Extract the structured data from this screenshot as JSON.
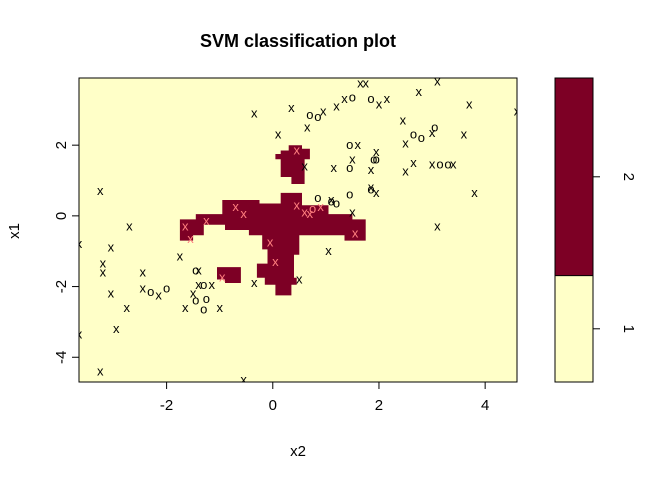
{
  "chart_data": {
    "type": "scatter",
    "title": "SVM classification plot",
    "xlabel": "x2",
    "ylabel": "x1",
    "xlim": [
      -3.65,
      4.6
    ],
    "ylim": [
      -4.7,
      3.9
    ],
    "x_ticks": [
      -2,
      0,
      2,
      4
    ],
    "y_ticks": [
      -4,
      -2,
      0,
      2
    ],
    "x_tick_labels": [
      "-2",
      "0",
      "2",
      "4"
    ],
    "y_tick_labels": [
      "-4",
      "-2",
      "0",
      "2"
    ],
    "grid": false,
    "colors": {
      "class_1": "#ffffc8",
      "class_2": "#7d0025",
      "point_on_class_1": "#000000",
      "point_on_class_2": "#ff7f7f"
    },
    "legend": {
      "placement": "right",
      "entries": [
        "1",
        "2"
      ],
      "split_fraction": 0.35
    },
    "decision_regions": [
      {
        "class": "2",
        "polygon": [
          [
            -1.75,
            -0.1
          ],
          [
            -1.45,
            -0.1
          ],
          [
            -1.45,
            0.05
          ],
          [
            -0.95,
            0.05
          ],
          [
            -0.95,
            0.45
          ],
          [
            -0.25,
            0.45
          ],
          [
            -0.25,
            0.35
          ],
          [
            0.15,
            0.35
          ],
          [
            0.15,
            0.65
          ],
          [
            0.55,
            0.65
          ],
          [
            0.55,
            0.3
          ],
          [
            1.05,
            0.3
          ],
          [
            1.05,
            0.05
          ],
          [
            1.5,
            0.05
          ],
          [
            1.5,
            -0.1
          ],
          [
            1.75,
            -0.1
          ],
          [
            1.75,
            -0.7
          ],
          [
            1.35,
            -0.7
          ],
          [
            1.35,
            -0.55
          ],
          [
            0.5,
            -0.55
          ],
          [
            0.5,
            -1.1
          ],
          [
            0.4,
            -1.1
          ],
          [
            0.4,
            -1.75
          ],
          [
            0.45,
            -1.75
          ],
          [
            0.45,
            -1.95
          ],
          [
            0.35,
            -1.95
          ],
          [
            0.35,
            -2.25
          ],
          [
            0.05,
            -2.25
          ],
          [
            0.05,
            -1.95
          ],
          [
            -0.15,
            -1.95
          ],
          [
            -0.15,
            -1.75
          ],
          [
            -0.3,
            -1.75
          ],
          [
            -0.3,
            -1.35
          ],
          [
            -0.1,
            -1.35
          ],
          [
            -0.1,
            -0.95
          ],
          [
            -0.2,
            -0.95
          ],
          [
            -0.2,
            -0.55
          ],
          [
            -0.45,
            -0.55
          ],
          [
            -0.45,
            -0.4
          ],
          [
            -0.9,
            -0.4
          ],
          [
            -0.9,
            -0.25
          ],
          [
            -1.3,
            -0.25
          ],
          [
            -1.3,
            -0.55
          ],
          [
            -1.5,
            -0.55
          ],
          [
            -1.5,
            -0.7
          ],
          [
            -1.75,
            -0.7
          ]
        ]
      },
      {
        "class": "2",
        "polygon": [
          [
            0.15,
            1.85
          ],
          [
            0.3,
            1.85
          ],
          [
            0.3,
            2.0
          ],
          [
            0.55,
            2.0
          ],
          [
            0.55,
            1.9
          ],
          [
            0.7,
            1.9
          ],
          [
            0.7,
            1.6
          ],
          [
            0.6,
            1.6
          ],
          [
            0.6,
            0.9
          ],
          [
            0.35,
            0.9
          ],
          [
            0.35,
            1.1
          ],
          [
            0.15,
            1.1
          ],
          [
            0.15,
            1.6
          ],
          [
            0.05,
            1.6
          ],
          [
            0.05,
            1.75
          ],
          [
            0.15,
            1.75
          ]
        ]
      },
      {
        "class": "2",
        "polygon": [
          [
            -1.05,
            -1.45
          ],
          [
            -0.6,
            -1.45
          ],
          [
            -0.6,
            -1.9
          ],
          [
            -0.9,
            -1.9
          ],
          [
            -0.9,
            -1.8
          ],
          [
            -1.05,
            -1.8
          ]
        ]
      }
    ],
    "points": [
      {
        "x": 1.75,
        "y": 3.75,
        "label": "x"
      },
      {
        "x": 1.65,
        "y": 3.75,
        "label": "x"
      },
      {
        "x": 3.1,
        "y": 3.8,
        "label": "x"
      },
      {
        "x": 2.75,
        "y": 3.5,
        "label": "x"
      },
      {
        "x": 1.35,
        "y": 3.3,
        "label": "x"
      },
      {
        "x": 1.5,
        "y": 3.35,
        "label": "o"
      },
      {
        "x": 1.85,
        "y": 3.3,
        "label": "o"
      },
      {
        "x": 2.15,
        "y": 3.3,
        "label": "x"
      },
      {
        "x": 2.0,
        "y": 3.15,
        "label": "x"
      },
      {
        "x": 3.7,
        "y": 3.15,
        "label": "x"
      },
      {
        "x": 4.6,
        "y": 2.95,
        "label": "x"
      },
      {
        "x": -0.35,
        "y": 2.9,
        "label": "x"
      },
      {
        "x": 0.35,
        "y": 3.05,
        "label": "x"
      },
      {
        "x": 0.7,
        "y": 2.85,
        "label": "o"
      },
      {
        "x": 0.85,
        "y": 2.8,
        "label": "o"
      },
      {
        "x": 0.95,
        "y": 2.95,
        "label": "x"
      },
      {
        "x": 1.2,
        "y": 3.1,
        "label": "x"
      },
      {
        "x": 2.45,
        "y": 2.7,
        "label": "x"
      },
      {
        "x": 0.65,
        "y": 2.5,
        "label": "x"
      },
      {
        "x": 3.0,
        "y": 2.35,
        "label": "x"
      },
      {
        "x": 3.05,
        "y": 2.5,
        "label": "o"
      },
      {
        "x": 2.65,
        "y": 2.3,
        "label": "o"
      },
      {
        "x": 2.8,
        "y": 2.2,
        "label": "o"
      },
      {
        "x": 3.6,
        "y": 2.3,
        "label": "x"
      },
      {
        "x": 0.1,
        "y": 2.3,
        "label": "x"
      },
      {
        "x": 1.45,
        "y": 2.0,
        "label": "o"
      },
      {
        "x": 1.6,
        "y": 2.0,
        "label": "x"
      },
      {
        "x": 2.5,
        "y": 2.05,
        "label": "x"
      },
      {
        "x": 1.5,
        "y": 1.6,
        "label": "x"
      },
      {
        "x": 1.9,
        "y": 1.6,
        "label": "o"
      },
      {
        "x": 1.95,
        "y": 1.6,
        "label": "o"
      },
      {
        "x": 1.95,
        "y": 1.8,
        "label": "x"
      },
      {
        "x": 1.85,
        "y": 1.3,
        "label": "x"
      },
      {
        "x": 2.65,
        "y": 1.5,
        "label": "x"
      },
      {
        "x": 3.0,
        "y": 1.45,
        "label": "x"
      },
      {
        "x": 3.15,
        "y": 1.45,
        "label": "o"
      },
      {
        "x": 3.3,
        "y": 1.45,
        "label": "o"
      },
      {
        "x": 3.4,
        "y": 1.45,
        "label": "x"
      },
      {
        "x": 2.5,
        "y": 1.25,
        "label": "x"
      },
      {
        "x": 1.15,
        "y": 1.35,
        "label": "x"
      },
      {
        "x": 1.45,
        "y": 1.35,
        "label": "o"
      },
      {
        "x": 1.85,
        "y": 0.8,
        "label": "x"
      },
      {
        "x": 1.85,
        "y": 0.75,
        "label": "o"
      },
      {
        "x": 1.95,
        "y": 0.65,
        "label": "x"
      },
      {
        "x": 1.45,
        "y": 0.6,
        "label": "o"
      },
      {
        "x": 3.8,
        "y": 0.65,
        "label": "x"
      },
      {
        "x": 0.85,
        "y": 0.5,
        "label": "o"
      },
      {
        "x": 1.1,
        "y": 0.45,
        "label": "x"
      },
      {
        "x": 1.1,
        "y": 0.4,
        "label": "o"
      },
      {
        "x": 1.2,
        "y": 0.35,
        "label": "o"
      },
      {
        "x": 0.9,
        "y": 0.25,
        "label": "x"
      },
      {
        "x": 0.75,
        "y": 0.2,
        "label": "o"
      },
      {
        "x": 0.7,
        "y": 0.05,
        "label": "x"
      },
      {
        "x": 1.5,
        "y": 0.1,
        "label": "x"
      },
      {
        "x": 3.1,
        "y": -0.3,
        "label": "x"
      },
      {
        "x": -3.25,
        "y": 0.7,
        "label": "x"
      },
      {
        "x": -2.7,
        "y": -0.3,
        "label": "x"
      },
      {
        "x": -3.65,
        "y": -0.8,
        "label": "x"
      },
      {
        "x": -3.05,
        "y": -0.9,
        "label": "x"
      },
      {
        "x": -3.2,
        "y": -1.35,
        "label": "x"
      },
      {
        "x": -3.2,
        "y": -1.6,
        "label": "x"
      },
      {
        "x": -2.45,
        "y": -1.6,
        "label": "x"
      },
      {
        "x": -2.45,
        "y": -2.05,
        "label": "x"
      },
      {
        "x": -2.15,
        "y": -2.25,
        "label": "x"
      },
      {
        "x": -2.3,
        "y": -2.15,
        "label": "o"
      },
      {
        "x": -2.0,
        "y": -2.05,
        "label": "o"
      },
      {
        "x": -3.05,
        "y": -2.2,
        "label": "x"
      },
      {
        "x": -2.75,
        "y": -2.6,
        "label": "x"
      },
      {
        "x": -2.95,
        "y": -3.2,
        "label": "x"
      },
      {
        "x": -3.65,
        "y": -3.35,
        "label": "x"
      },
      {
        "x": -3.25,
        "y": -4.4,
        "label": "x"
      },
      {
        "x": -1.45,
        "y": -1.55,
        "label": "o"
      },
      {
        "x": -1.4,
        "y": -1.55,
        "label": "x"
      },
      {
        "x": -1.3,
        "y": -1.95,
        "label": "o"
      },
      {
        "x": -1.4,
        "y": -1.95,
        "label": "x"
      },
      {
        "x": -1.15,
        "y": -1.95,
        "label": "x"
      },
      {
        "x": -1.5,
        "y": -2.2,
        "label": "x"
      },
      {
        "x": -1.25,
        "y": -2.35,
        "label": "o"
      },
      {
        "x": -1.45,
        "y": -2.4,
        "label": "o"
      },
      {
        "x": -1.3,
        "y": -2.65,
        "label": "o"
      },
      {
        "x": -1.65,
        "y": -2.6,
        "label": "x"
      },
      {
        "x": -1.0,
        "y": -2.6,
        "label": "x"
      },
      {
        "x": -1.75,
        "y": -1.15,
        "label": "x"
      },
      {
        "x": -0.35,
        "y": -1.9,
        "label": "x"
      },
      {
        "x": 0.5,
        "y": -1.8,
        "label": "x"
      },
      {
        "x": 1.05,
        "y": -1.0,
        "label": "x"
      },
      {
        "x": -0.55,
        "y": -4.65,
        "label": "x"
      },
      {
        "x": -1.65,
        "y": -0.3,
        "label": "x"
      },
      {
        "x": -1.55,
        "y": -0.65,
        "label": "x"
      },
      {
        "x": -1.25,
        "y": -0.15,
        "label": "x"
      },
      {
        "x": -0.7,
        "y": 0.25,
        "label": "x"
      },
      {
        "x": -0.55,
        "y": 0.05,
        "label": "x"
      },
      {
        "x": 0.45,
        "y": 0.3,
        "label": "x"
      },
      {
        "x": 0.6,
        "y": 0.1,
        "label": "x"
      },
      {
        "x": 0.6,
        "y": 1.4,
        "label": "x"
      },
      {
        "x": 0.45,
        "y": 1.85,
        "label": "x"
      },
      {
        "x": -0.05,
        "y": -0.75,
        "label": "x"
      },
      {
        "x": 0.05,
        "y": -1.3,
        "label": "x"
      },
      {
        "x": -0.95,
        "y": -1.75,
        "label": "x"
      },
      {
        "x": 1.55,
        "y": -0.5,
        "label": "x"
      }
    ]
  }
}
